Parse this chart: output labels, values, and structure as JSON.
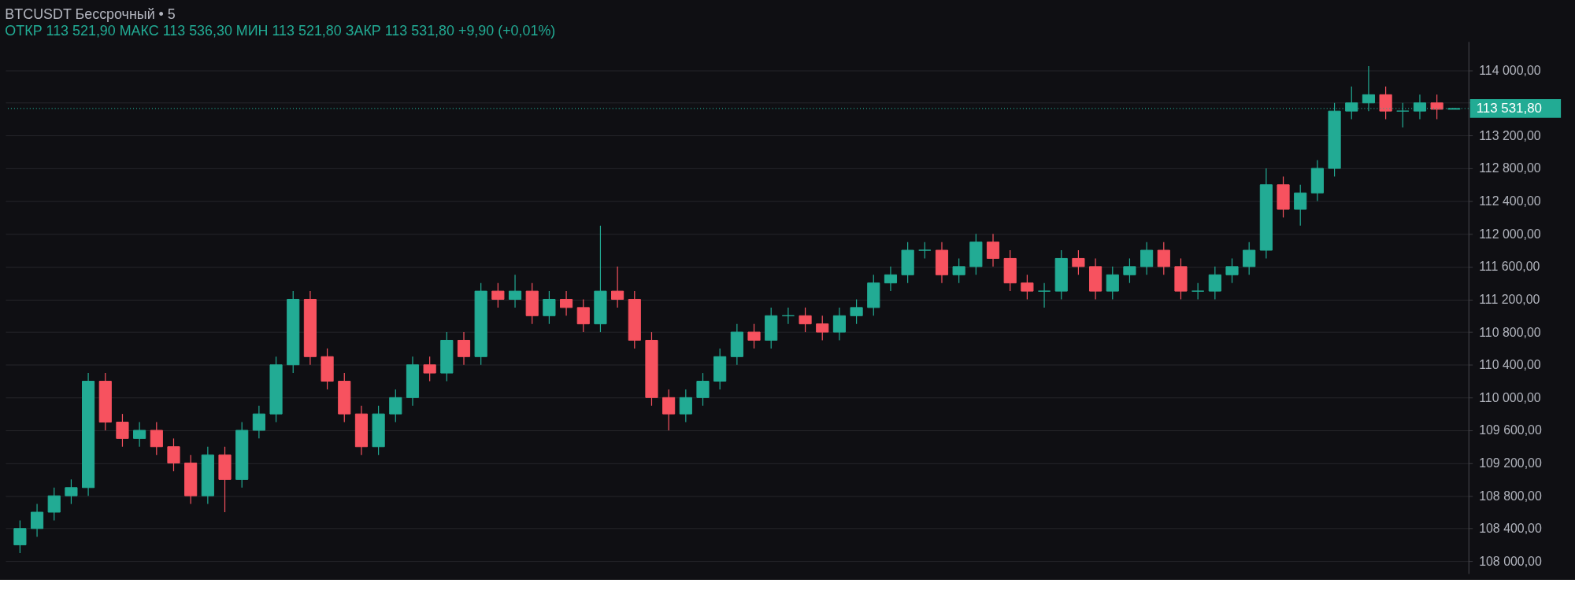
{
  "chart_data": {
    "type": "candlestick",
    "title": "BTCUSDT Бессрочный • 5",
    "subtitle": "ОТКР 113 521,90   МАКС 113 536,30   МИН 113 521,80   ЗАКР 113 531,80   +9,90 (+0,01%)",
    "categories": [
      null,
      null,
      null,
      null,
      null,
      null,
      null,
      null,
      null,
      null,
      null,
      null,
      null,
      null,
      null,
      null,
      null,
      null,
      null,
      null,
      null,
      null,
      null,
      null,
      null,
      null,
      null,
      null,
      null,
      null,
      null,
      null,
      null,
      null,
      null,
      null,
      null,
      null,
      null,
      null,
      null,
      null,
      null,
      null,
      null,
      null,
      null,
      null,
      null,
      null,
      null,
      null,
      null,
      null,
      null,
      null,
      null,
      null,
      null,
      null,
      null,
      null,
      null,
      null,
      null,
      null,
      null,
      null,
      null,
      null,
      null,
      null,
      null,
      null,
      null,
      null,
      null,
      null,
      null,
      null,
      null,
      null,
      null,
      null,
      null
    ],
    "ohlc": [
      [
        108200,
        108500,
        108100,
        108400
      ],
      [
        108400,
        108700,
        108300,
        108600
      ],
      [
        108600,
        108900,
        108500,
        108800
      ],
      [
        108800,
        109000,
        108700,
        108900
      ],
      [
        108900,
        110300,
        108800,
        110200
      ],
      [
        110200,
        110300,
        109600,
        109700
      ],
      [
        109700,
        109800,
        109400,
        109500
      ],
      [
        109500,
        109700,
        109400,
        109600
      ],
      [
        109600,
        109700,
        109300,
        109400
      ],
      [
        109400,
        109500,
        109100,
        109200
      ],
      [
        109200,
        109300,
        108700,
        108800
      ],
      [
        108800,
        109400,
        108700,
        109300
      ],
      [
        109300,
        109400,
        108600,
        109000
      ],
      [
        109000,
        109700,
        108900,
        109600
      ],
      [
        109600,
        109900,
        109500,
        109800
      ],
      [
        109800,
        110500,
        109700,
        110400
      ],
      [
        110400,
        111300,
        110300,
        111200
      ],
      [
        111200,
        111300,
        110400,
        110500
      ],
      [
        110500,
        110600,
        110100,
        110200
      ],
      [
        110200,
        110300,
        109700,
        109800
      ],
      [
        109800,
        109900,
        109300,
        109400
      ],
      [
        109400,
        109900,
        109300,
        109800
      ],
      [
        109800,
        110100,
        109700,
        110000
      ],
      [
        110000,
        110500,
        109900,
        110400
      ],
      [
        110400,
        110500,
        110200,
        110300
      ],
      [
        110300,
        110800,
        110200,
        110700
      ],
      [
        110700,
        110800,
        110400,
        110500
      ],
      [
        110500,
        111400,
        110400,
        111300
      ],
      [
        111300,
        111400,
        111100,
        111200
      ],
      [
        111200,
        111500,
        111100,
        111300
      ],
      [
        111300,
        111400,
        110900,
        111000
      ],
      [
        111000,
        111300,
        110900,
        111200
      ],
      [
        111200,
        111300,
        111000,
        111100
      ],
      [
        111100,
        111200,
        110800,
        110900
      ],
      [
        110900,
        112100,
        110800,
        111300
      ],
      [
        111300,
        111600,
        111100,
        111200
      ],
      [
        111200,
        111300,
        110600,
        110700
      ],
      [
        110700,
        110800,
        109900,
        110000
      ],
      [
        110000,
        110100,
        109600,
        109800
      ],
      [
        109800,
        110100,
        109700,
        110000
      ],
      [
        110000,
        110300,
        109900,
        110200
      ],
      [
        110200,
        110600,
        110100,
        110500
      ],
      [
        110500,
        110900,
        110400,
        110800
      ],
      [
        110800,
        110900,
        110600,
        110700
      ],
      [
        110700,
        111100,
        110600,
        111000
      ],
      [
        111000,
        111100,
        110900,
        111000
      ],
      [
        111000,
        111100,
        110800,
        110900
      ],
      [
        110900,
        111000,
        110700,
        110800
      ],
      [
        110800,
        111100,
        110700,
        111000
      ],
      [
        111000,
        111200,
        110900,
        111100
      ],
      [
        111100,
        111500,
        111000,
        111400
      ],
      [
        111400,
        111600,
        111300,
        111500
      ],
      [
        111500,
        111900,
        111400,
        111800
      ],
      [
        111800,
        111900,
        111700,
        111800
      ],
      [
        111800,
        111900,
        111400,
        111500
      ],
      [
        111500,
        111700,
        111400,
        111600
      ],
      [
        111600,
        112000,
        111500,
        111900
      ],
      [
        111900,
        112000,
        111600,
        111700
      ],
      [
        111700,
        111800,
        111300,
        111400
      ],
      [
        111400,
        111500,
        111200,
        111300
      ],
      [
        111300,
        111400,
        111100,
        111300
      ],
      [
        111300,
        111800,
        111200,
        111700
      ],
      [
        111700,
        111800,
        111500,
        111600
      ],
      [
        111600,
        111700,
        111200,
        111300
      ],
      [
        111300,
        111600,
        111200,
        111500
      ],
      [
        111500,
        111700,
        111400,
        111600
      ],
      [
        111600,
        111900,
        111500,
        111800
      ],
      [
        111800,
        111900,
        111500,
        111600
      ],
      [
        111600,
        111700,
        111200,
        111300
      ],
      [
        111300,
        111400,
        111200,
        111300
      ],
      [
        111300,
        111600,
        111200,
        111500
      ],
      [
        111500,
        111700,
        111400,
        111600
      ],
      [
        111600,
        111900,
        111500,
        111800
      ],
      [
        111800,
        112800,
        111700,
        112600
      ],
      [
        112600,
        112700,
        112200,
        112300
      ],
      [
        112300,
        112600,
        112100,
        112500
      ],
      [
        112500,
        112900,
        112400,
        112800
      ],
      [
        112800,
        113600,
        112700,
        113500
      ],
      [
        113500,
        113800,
        113400,
        113600
      ],
      [
        113600,
        114050,
        113500,
        113700
      ],
      [
        113700,
        113800,
        113400,
        113500
      ],
      [
        113500,
        113600,
        113300,
        113500
      ],
      [
        113500,
        113700,
        113400,
        113600
      ],
      [
        113600,
        113700,
        113400,
        113521.9
      ],
      [
        113521.9,
        113536.3,
        113521.8,
        113531.8
      ]
    ],
    "colors": [
      "#22ab94",
      "#22ab94",
      "#22ab94",
      "#22ab94",
      "#22ab94",
      "#f7525f",
      "#f7525f",
      "#22ab94",
      "#f7525f",
      "#f7525f",
      "#f7525f",
      "#22ab94",
      "#f7525f",
      "#22ab94",
      "#22ab94",
      "#22ab94",
      "#22ab94",
      "#f7525f",
      "#f7525f",
      "#f7525f",
      "#f7525f",
      "#22ab94",
      "#22ab94",
      "#22ab94",
      "#f7525f",
      "#22ab94",
      "#f7525f",
      "#22ab94",
      "#f7525f",
      "#22ab94",
      "#f7525f",
      "#22ab94",
      "#f7525f",
      "#f7525f",
      "#22ab94",
      "#f7525f",
      "#f7525f",
      "#f7525f",
      "#f7525f",
      "#22ab94",
      "#22ab94",
      "#22ab94",
      "#22ab94",
      "#f7525f",
      "#22ab94",
      "#22ab94",
      "#f7525f",
      "#f7525f",
      "#22ab94",
      "#22ab94",
      "#22ab94",
      "#22ab94",
      "#22ab94",
      "#22ab94",
      "#f7525f",
      "#22ab94",
      "#22ab94",
      "#f7525f",
      "#f7525f",
      "#f7525f",
      "#22ab94",
      "#22ab94",
      "#f7525f",
      "#f7525f",
      "#22ab94",
      "#22ab94",
      "#22ab94",
      "#f7525f",
      "#f7525f",
      "#22ab94",
      "#22ab94",
      "#22ab94",
      "#22ab94",
      "#22ab94",
      "#f7525f",
      "#22ab94",
      "#22ab94",
      "#22ab94",
      "#22ab94",
      "#22ab94",
      "#f7525f",
      "#22ab94",
      "#22ab94",
      "#f7525f",
      "#22ab94"
    ],
    "ylim": [
      107850,
      114350
    ],
    "yticks": [
      {
        "value": 108000,
        "label": "108 000,00"
      },
      {
        "value": 108400,
        "label": "108 400,00"
      },
      {
        "value": 108800,
        "label": "108 800,00"
      },
      {
        "value": 109200,
        "label": "109 200,00"
      },
      {
        "value": 109600,
        "label": "109 600,00"
      },
      {
        "value": 110000,
        "label": "110 000,00"
      },
      {
        "value": 110400,
        "label": "110 400,00"
      },
      {
        "value": 110800,
        "label": "110 800,00"
      },
      {
        "value": 111200,
        "label": "111 200,00"
      },
      {
        "value": 111600,
        "label": "111 600,00"
      },
      {
        "value": 112000,
        "label": "112 000,00"
      },
      {
        "value": 112400,
        "label": "112 400,00"
      },
      {
        "value": 112800,
        "label": "112 800,00"
      },
      {
        "value": 113200,
        "label": "113 200,00"
      },
      {
        "value": 113600,
        "label": null
      },
      {
        "value": 114000,
        "label": "114 000,00"
      }
    ],
    "ref_lines": [
      {
        "axis": "y",
        "value": 113531.8,
        "label": "113 531,80",
        "color": "#22ab94",
        "line_style": "dotted"
      }
    ],
    "grid": "y",
    "tick_labels": "y"
  }
}
